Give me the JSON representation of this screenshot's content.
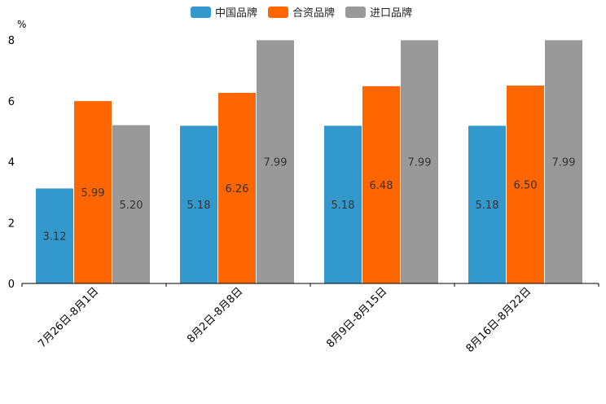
{
  "chart_data": {
    "type": "bar",
    "title": "",
    "xlabel": "",
    "ylabel": "%",
    "ylim": [
      0,
      8
    ],
    "yticks": [
      "0",
      "2",
      "4",
      "6",
      "8"
    ],
    "grid": false,
    "legend_position": "top-center",
    "categories": [
      "7月26日-8月1日",
      "8月2日-8月8日",
      "8月9日-8月15日",
      "8月16日-8月22日"
    ],
    "series": [
      {
        "name": "中国品牌",
        "color": "#3399cc",
        "values": [
          3.12,
          5.18,
          5.18,
          5.18
        ],
        "labels": [
          "3.12",
          "5.18",
          "5.18",
          "5.18"
        ]
      },
      {
        "name": "合资品牌",
        "color": "#ff6600",
        "values": [
          5.99,
          6.26,
          6.48,
          6.5
        ],
        "labels": [
          "5.99",
          "6.26",
          "6.48",
          "6.50"
        ]
      },
      {
        "name": "进口品牌",
        "color": "#999999",
        "values": [
          5.2,
          7.99,
          7.99,
          7.99
        ],
        "labels": [
          "5.20",
          "7.99",
          "7.99",
          "7.99"
        ]
      }
    ]
  }
}
